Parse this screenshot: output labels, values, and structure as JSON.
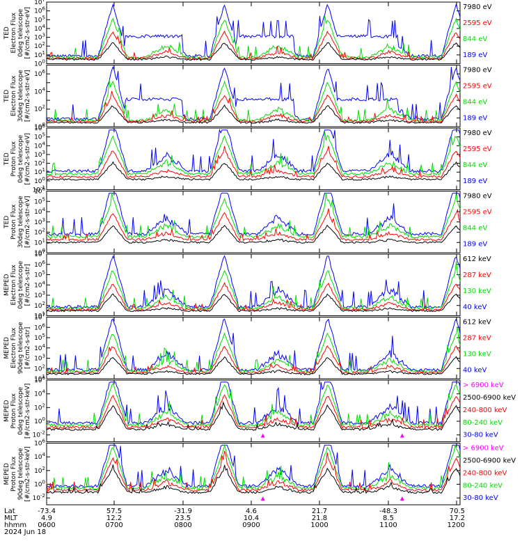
{
  "chart_data": {
    "type": "line",
    "x_axis": {
      "row_labels": [
        "Lat",
        "MLT",
        "hhmm",
        "2024 Jun 18"
      ],
      "ticks": [
        {
          "lat": "-73.4",
          "mlt": "4.9",
          "hhmm": "0600"
        },
        {
          "lat": "57.5",
          "mlt": "12.2",
          "hhmm": "0700"
        },
        {
          "lat": "-31.9",
          "mlt": "23.5",
          "hhmm": "0800"
        },
        {
          "lat": "4.6",
          "mlt": "10.4",
          "hhmm": "0900"
        },
        {
          "lat": "21.7",
          "mlt": "21.8",
          "hhmm": "1000"
        },
        {
          "lat": "-48.3",
          "mlt": "8.5",
          "hhmm": "1100"
        },
        {
          "lat": "70.5",
          "mlt": "17.2",
          "hhmm": "1200"
        }
      ]
    },
    "panels": [
      {
        "ylabel": [
          "TED",
          "Electron Flux",
          "0deg telescope",
          "[#/cm2-s-str-eV]"
        ],
        "yticks": [
          "10^0",
          "10^1",
          "10^2",
          "10^3",
          "10^4",
          "10^5",
          "10^6",
          "10^7"
        ],
        "ymin_exp": 0,
        "ymax_exp": 7,
        "series": [
          {
            "name": "7980 eV",
            "color": "#000000"
          },
          {
            "name": "2595 eV",
            "color": "#ff0000"
          },
          {
            "name": "844 eV",
            "color": "#00dd00"
          },
          {
            "name": "189 eV",
            "color": "#0000ff"
          }
        ]
      },
      {
        "ylabel": [
          "TED",
          "Electron Flux",
          "30deg telescope",
          "[#/cm2-s-str-eV]"
        ],
        "yticks": [
          "10^0",
          "",
          "10^2",
          "",
          "10^4",
          "",
          "10^6",
          ""
        ],
        "ymin_exp": 0,
        "ymax_exp": 7,
        "series": [
          {
            "name": "7980 eV",
            "color": "#000000"
          },
          {
            "name": "2595 eV",
            "color": "#ff0000"
          },
          {
            "name": "844 eV",
            "color": "#00dd00"
          },
          {
            "name": "189 eV",
            "color": "#0000ff"
          }
        ]
      },
      {
        "ylabel": [
          "TED",
          "Proton Flux",
          "0deg telescope",
          "[#/cm2-s-str-eV]"
        ],
        "yticks": [
          "10^-1",
          "10^0",
          "10^1",
          "10^2",
          "10^3",
          "10^4",
          "10^5",
          "10^6"
        ],
        "ymin_exp": -1,
        "ymax_exp": 6,
        "series": [
          {
            "name": "7980 eV",
            "color": "#000000"
          },
          {
            "name": "2595 eV",
            "color": "#ff0000"
          },
          {
            "name": "844 eV",
            "color": "#00dd00"
          },
          {
            "name": "189 eV",
            "color": "#0000ff"
          }
        ]
      },
      {
        "ylabel": [
          "TED",
          "Proton Flux",
          "30deg telescope",
          "[#/cm2-s-str-eV]"
        ],
        "yticks": [
          "10^0",
          "10^1",
          "10^2",
          "10^3",
          "10^4",
          "10^5",
          "10^6"
        ],
        "ymin_exp": 0,
        "ymax_exp": 6,
        "series": [
          {
            "name": "7980 eV",
            "color": "#000000"
          },
          {
            "name": "2595 eV",
            "color": "#ff0000"
          },
          {
            "name": "844 eV",
            "color": "#00dd00"
          },
          {
            "name": "189 eV",
            "color": "#0000ff"
          }
        ]
      },
      {
        "ylabel": [
          "MEPED",
          "Electron Flux",
          "0deg telescope",
          "[#/cm2-s-str]"
        ],
        "yticks": [
          "10^1",
          "10^2",
          "10^3",
          "10^4",
          "10^5",
          "10^6",
          "10^7"
        ],
        "ymin_exp": 1,
        "ymax_exp": 7,
        "series": [
          {
            "name": "612 keV",
            "color": "#000000"
          },
          {
            "name": "287 keV",
            "color": "#ff0000"
          },
          {
            "name": "130 keV",
            "color": "#00dd00"
          },
          {
            "name": "40 keV",
            "color": "#0000ff"
          }
        ]
      },
      {
        "ylabel": [
          "MEPED",
          "Electron Flux",
          "90deg telescope",
          "[#/cm2-s-str]"
        ],
        "yticks": [
          "10^1",
          "10^2",
          "10^3",
          "10^4",
          "10^5",
          "10^6",
          "10^7"
        ],
        "ymin_exp": 1,
        "ymax_exp": 7,
        "series": [
          {
            "name": "612 keV",
            "color": "#000000"
          },
          {
            "name": "287 keV",
            "color": "#ff0000"
          },
          {
            "name": "130 keV",
            "color": "#00dd00"
          },
          {
            "name": "40 keV",
            "color": "#0000ff"
          }
        ]
      },
      {
        "ylabel": [
          "MEPED",
          "Proton Flux",
          "0deg telescope",
          "[#/cm2-s-str-keV]"
        ],
        "yticks": [
          "10^-2",
          "10^0",
          "10^2",
          "10^4",
          "10^6"
        ],
        "ymin_exp": -3,
        "ymax_exp": 6,
        "series": [
          {
            "name": "> 6900 keV",
            "color": "#ff00ff"
          },
          {
            "name": "2500-6900 keV",
            "color": "#000000"
          },
          {
            "name": "240-800 keV",
            "color": "#ff0000"
          },
          {
            "name": "80-240 keV",
            "color": "#00dd00"
          },
          {
            "name": "30-80 keV",
            "color": "#0000ff"
          }
        ]
      },
      {
        "ylabel": [
          "MEPED",
          "Proton Flux",
          "90deg telescope",
          "[#/cm2-s-str-keV]"
        ],
        "yticks": [
          "10^-2",
          "10^0",
          "10^2",
          "10^4",
          "10^6"
        ],
        "ymin_exp": -3,
        "ymax_exp": 6,
        "series": [
          {
            "name": "> 6900 keV",
            "color": "#ff00ff"
          },
          {
            "name": "2500-6900 keV",
            "color": "#000000"
          },
          {
            "name": "240-800 keV",
            "color": "#ff0000"
          },
          {
            "name": "80-240 keV",
            "color": "#00dd00"
          },
          {
            "name": "30-80 keV",
            "color": "#0000ff"
          }
        ]
      }
    ]
  }
}
